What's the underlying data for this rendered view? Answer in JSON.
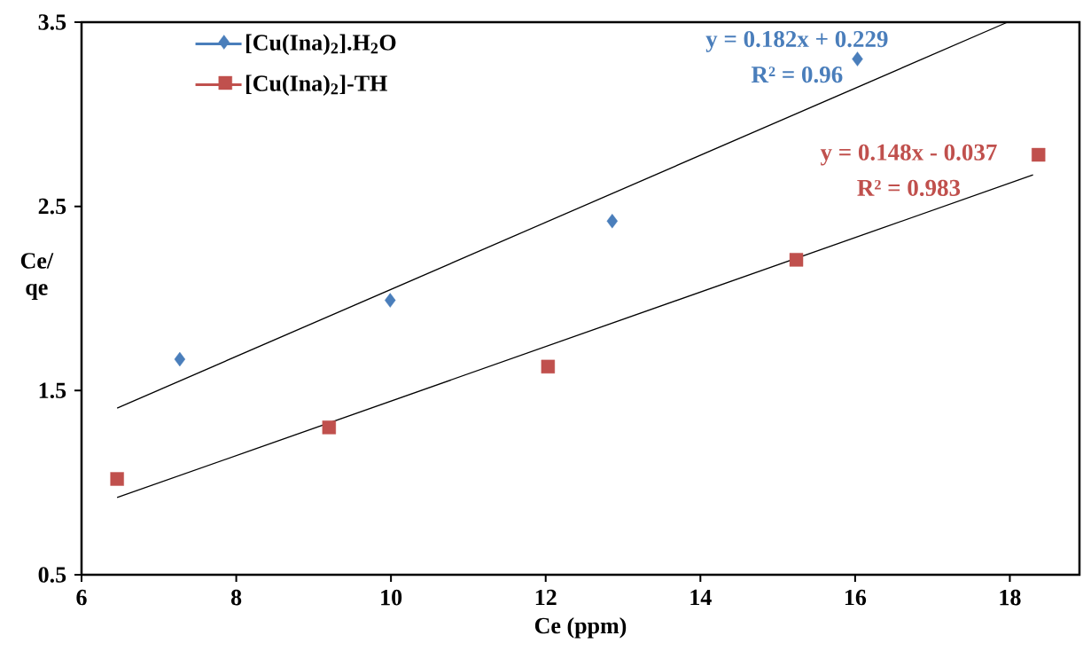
{
  "chart_data": {
    "type": "scatter",
    "xlabel": "Ce (ppm)",
    "ylabel": "Ce/ qe",
    "xlim": [
      6,
      18.9
    ],
    "ylim": [
      0.5,
      3.5
    ],
    "xticks": [
      6,
      8,
      10,
      12,
      14,
      16,
      18
    ],
    "yticks": [
      0.5,
      1.5,
      2.5,
      3.5
    ],
    "legend": "top left",
    "grid": false,
    "series": [
      {
        "name": "[Cu(Ina)$_{2}$].H$_{2}$O",
        "color": "#4a7ebb",
        "marker": "diamond",
        "x": [
          7.27,
          9.99,
          12.86,
          16.03
        ],
        "values": [
          1.67,
          1.99,
          2.42,
          3.3
        ]
      },
      {
        "name": "[Cu(Ina)$_{2}$]-TH",
        "color": "#c0504d",
        "marker": "square",
        "x": [
          6.46,
          9.2,
          12.03,
          15.24,
          18.37
        ],
        "values": [
          1.02,
          1.3,
          1.63,
          2.21,
          2.78
        ]
      },
      {
        "type": "line",
        "color": "#000000",
        "marker": "none",
        "x": [
          6.46,
          17.97
        ],
        "values": [
          1.405,
          3.5
        ]
      },
      {
        "type": "line",
        "color": "#000000",
        "marker": "none",
        "x": [
          6.46,
          18.3
        ],
        "values": [
          0.919,
          2.671
        ]
      }
    ],
    "annotations": [
      "y = 0.182x + 0.229",
      "R² = 0.96",
      "y = 0.148x - 0.037",
      "R² = 0.983"
    ]
  }
}
